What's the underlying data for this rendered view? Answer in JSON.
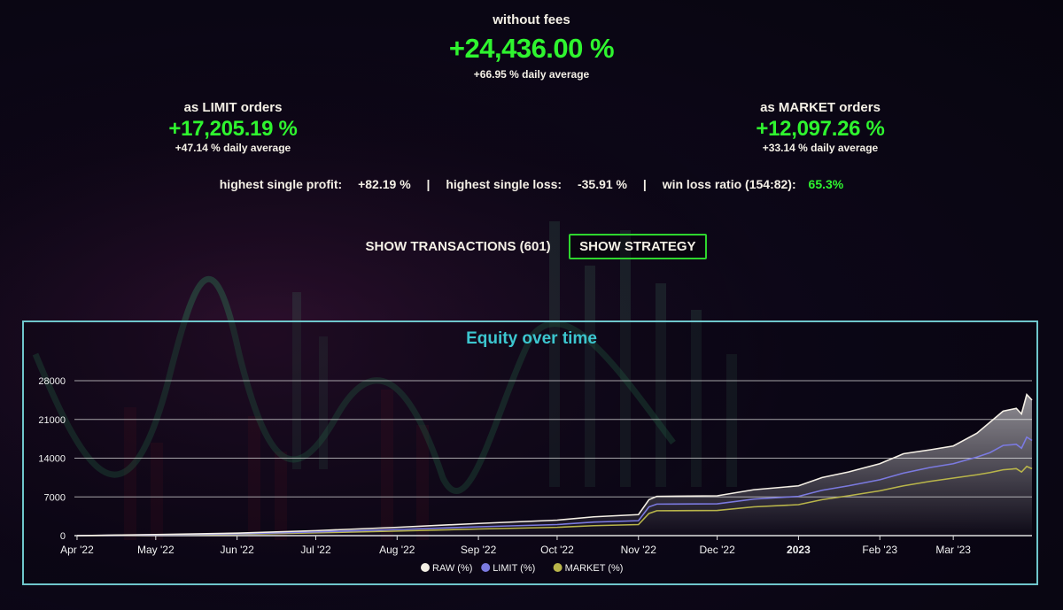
{
  "summary": {
    "main_caption": "without fees",
    "main_value": "+24,436.00 %",
    "main_daily": "+66.95 % daily average",
    "limit_caption": "as LIMIT orders",
    "limit_value": "+17,205.19 %",
    "limit_daily": "+47.14 % daily average",
    "market_caption": "as MARKET orders",
    "market_value": "+12,097.26 %",
    "market_daily": "+33.14 % daily average"
  },
  "stats": {
    "profit_label": "highest single profit:",
    "profit_value": "+82.19 %",
    "loss_label": "highest single loss:",
    "loss_value": "-35.91 %",
    "ratio_label": "win loss ratio (154:82):",
    "ratio_value": "65.3%",
    "separator": "|"
  },
  "buttons": {
    "transactions": "SHOW TRANSACTIONS (601)",
    "strategy": "SHOW STRATEGY"
  },
  "colors": {
    "accent_green": "#2ff52f",
    "panel_border": "#6fc6cc",
    "title": "#3cc6cf",
    "raw": "#f5f0e6",
    "limit": "#7b7ae0",
    "market": "#b9b54a"
  },
  "chart_data": {
    "type": "area",
    "title": "Equity over time",
    "xlabel": "",
    "ylabel": "",
    "ylim": [
      0,
      28000
    ],
    "yticks": [
      0,
      7000,
      14000,
      21000,
      28000
    ],
    "xlim": [
      "2022-03-31",
      "2023-03-31"
    ],
    "xticks": [
      {
        "date": "2022-04-01",
        "label": "Apr '22"
      },
      {
        "date": "2022-05-01",
        "label": "May '22"
      },
      {
        "date": "2022-06-01",
        "label": "Jun '22"
      },
      {
        "date": "2022-07-01",
        "label": "Jul '22"
      },
      {
        "date": "2022-08-01",
        "label": "Aug '22"
      },
      {
        "date": "2022-09-01",
        "label": "Sep '22"
      },
      {
        "date": "2022-10-01",
        "label": "Oct '22"
      },
      {
        "date": "2022-11-01",
        "label": "Nov '22"
      },
      {
        "date": "2022-12-01",
        "label": "Dec '22"
      },
      {
        "date": "2023-01-01",
        "label": "2023"
      },
      {
        "date": "2023-02-01",
        "label": "Feb '23"
      },
      {
        "date": "2023-03-01",
        "label": "Mar '23"
      }
    ],
    "grid": true,
    "legend_position": "bottom-center",
    "x": [
      "2022-04-01",
      "2022-05-01",
      "2022-06-01",
      "2022-07-01",
      "2022-08-01",
      "2022-09-01",
      "2022-10-01",
      "2022-10-15",
      "2022-11-01",
      "2022-11-05",
      "2022-11-08",
      "2022-12-01",
      "2022-12-15",
      "2023-01-01",
      "2023-01-10",
      "2023-01-20",
      "2023-02-01",
      "2023-02-10",
      "2023-02-20",
      "2023-03-01",
      "2023-03-10",
      "2023-03-15",
      "2023-03-20",
      "2023-03-25",
      "2023-03-27",
      "2023-03-29",
      "2023-03-31"
    ],
    "series": [
      {
        "name": "RAW (%)",
        "color": "#f5f0e6",
        "values": [
          0,
          200,
          450,
          900,
          1500,
          2200,
          2800,
          3400,
          3800,
          6500,
          7100,
          7200,
          8300,
          9000,
          10500,
          11500,
          13000,
          14800,
          15500,
          16200,
          18500,
          20500,
          22500,
          23000,
          22000,
          25500,
          24500
        ]
      },
      {
        "name": "LIMIT (%)",
        "color": "#7b7ae0",
        "values": [
          0,
          150,
          330,
          660,
          1100,
          1600,
          2000,
          2450,
          2700,
          5200,
          5700,
          5750,
          6600,
          7100,
          8200,
          9000,
          10100,
          11300,
          12300,
          13000,
          14200,
          15000,
          16300,
          16500,
          15800,
          17800,
          17200
        ]
      },
      {
        "name": "MARKET (%)",
        "color": "#b9b54a",
        "values": [
          0,
          120,
          250,
          500,
          820,
          1200,
          1500,
          1800,
          2000,
          4000,
          4500,
          4550,
          5200,
          5600,
          6500,
          7200,
          8100,
          9000,
          9800,
          10400,
          11000,
          11400,
          11900,
          12100,
          11500,
          12500,
          12100
        ]
      }
    ]
  }
}
